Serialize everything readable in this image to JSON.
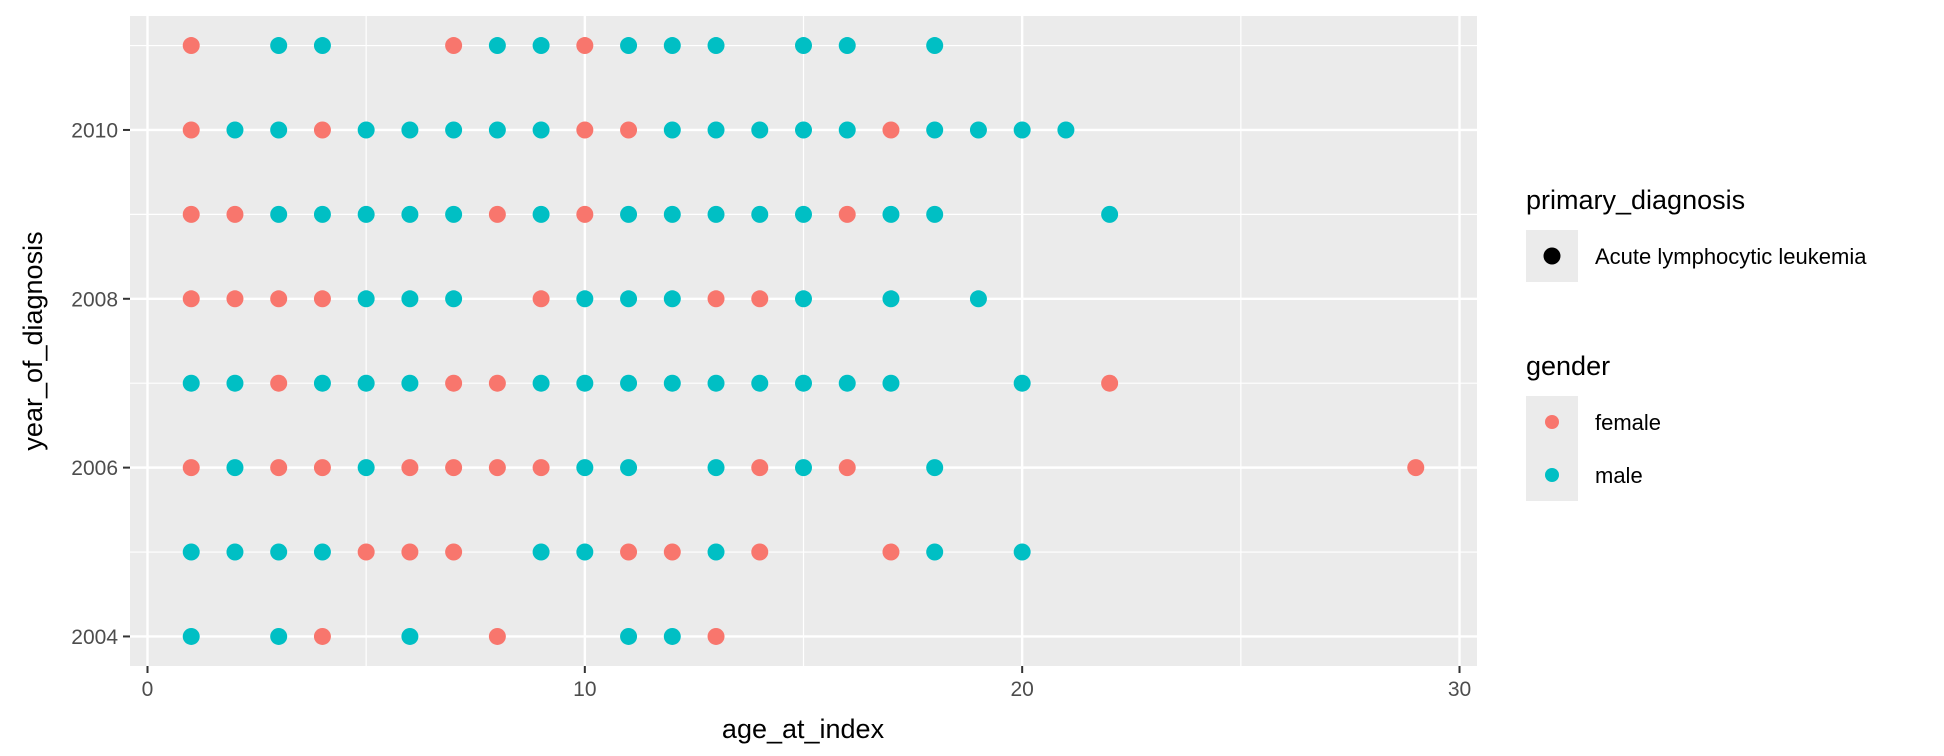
{
  "chart_data": {
    "type": "scatter",
    "title": "",
    "xlabel": "age_at_index",
    "ylabel": "year_of_diagnosis",
    "xlim": [
      -0.4,
      30.4
    ],
    "ylim": [
      2003.65,
      2011.35
    ],
    "x_ticks": [
      0,
      10,
      20,
      30
    ],
    "y_ticks": [
      2004,
      2006,
      2008,
      2010
    ],
    "x_tick_labels": [
      "0",
      "10",
      "20",
      "30"
    ],
    "y_tick_labels": [
      "2004",
      "2006",
      "2008",
      "2010"
    ],
    "grid": true,
    "legend_position": "right",
    "legends": [
      {
        "title": "primary_diagnosis",
        "entries": [
          {
            "label": "Acute lymphocytic leukemia",
            "color": "#000000"
          }
        ]
      },
      {
        "title": "gender",
        "entries": [
          {
            "label": "female",
            "color": "#F8766D"
          },
          {
            "label": "male",
            "color": "#00BFC4"
          }
        ]
      }
    ],
    "series": [
      {
        "name": "female",
        "color": "#F8766D",
        "points": [
          [
            1,
            2011
          ],
          [
            7,
            2011
          ],
          [
            10,
            2011
          ],
          [
            1,
            2010
          ],
          [
            4,
            2010
          ],
          [
            10,
            2010
          ],
          [
            11,
            2010
          ],
          [
            17,
            2010
          ],
          [
            1,
            2009
          ],
          [
            2,
            2009
          ],
          [
            8,
            2009
          ],
          [
            10,
            2009
          ],
          [
            16,
            2009
          ],
          [
            1,
            2008
          ],
          [
            2,
            2008
          ],
          [
            3,
            2008
          ],
          [
            4,
            2008
          ],
          [
            9,
            2008
          ],
          [
            13,
            2008
          ],
          [
            14,
            2008
          ],
          [
            3,
            2007
          ],
          [
            7,
            2007
          ],
          [
            8,
            2007
          ],
          [
            22,
            2007
          ],
          [
            1,
            2006
          ],
          [
            3,
            2006
          ],
          [
            4,
            2006
          ],
          [
            6,
            2006
          ],
          [
            7,
            2006
          ],
          [
            8,
            2006
          ],
          [
            9,
            2006
          ],
          [
            14,
            2006
          ],
          [
            16,
            2006
          ],
          [
            29,
            2006
          ],
          [
            5,
            2005
          ],
          [
            6,
            2005
          ],
          [
            7,
            2005
          ],
          [
            11,
            2005
          ],
          [
            12,
            2005
          ],
          [
            14,
            2005
          ],
          [
            17,
            2005
          ],
          [
            4,
            2004
          ],
          [
            8,
            2004
          ],
          [
            13,
            2004
          ]
        ]
      },
      {
        "name": "male",
        "color": "#00BFC4",
        "points": [
          [
            3,
            2011
          ],
          [
            4,
            2011
          ],
          [
            8,
            2011
          ],
          [
            9,
            2011
          ],
          [
            11,
            2011
          ],
          [
            12,
            2011
          ],
          [
            13,
            2011
          ],
          [
            15,
            2011
          ],
          [
            16,
            2011
          ],
          [
            18,
            2011
          ],
          [
            2,
            2010
          ],
          [
            3,
            2010
          ],
          [
            5,
            2010
          ],
          [
            6,
            2010
          ],
          [
            7,
            2010
          ],
          [
            8,
            2010
          ],
          [
            9,
            2010
          ],
          [
            12,
            2010
          ],
          [
            13,
            2010
          ],
          [
            14,
            2010
          ],
          [
            15,
            2010
          ],
          [
            16,
            2010
          ],
          [
            18,
            2010
          ],
          [
            19,
            2010
          ],
          [
            20,
            2010
          ],
          [
            21,
            2010
          ],
          [
            3,
            2009
          ],
          [
            4,
            2009
          ],
          [
            5,
            2009
          ],
          [
            6,
            2009
          ],
          [
            7,
            2009
          ],
          [
            9,
            2009
          ],
          [
            11,
            2009
          ],
          [
            12,
            2009
          ],
          [
            13,
            2009
          ],
          [
            14,
            2009
          ],
          [
            15,
            2009
          ],
          [
            17,
            2009
          ],
          [
            18,
            2009
          ],
          [
            22,
            2009
          ],
          [
            5,
            2008
          ],
          [
            6,
            2008
          ],
          [
            7,
            2008
          ],
          [
            10,
            2008
          ],
          [
            11,
            2008
          ],
          [
            12,
            2008
          ],
          [
            15,
            2008
          ],
          [
            17,
            2008
          ],
          [
            19,
            2008
          ],
          [
            1,
            2007
          ],
          [
            2,
            2007
          ],
          [
            4,
            2007
          ],
          [
            5,
            2007
          ],
          [
            6,
            2007
          ],
          [
            9,
            2007
          ],
          [
            10,
            2007
          ],
          [
            11,
            2007
          ],
          [
            12,
            2007
          ],
          [
            13,
            2007
          ],
          [
            14,
            2007
          ],
          [
            15,
            2007
          ],
          [
            16,
            2007
          ],
          [
            17,
            2007
          ],
          [
            20,
            2007
          ],
          [
            2,
            2006
          ],
          [
            5,
            2006
          ],
          [
            10,
            2006
          ],
          [
            11,
            2006
          ],
          [
            13,
            2006
          ],
          [
            15,
            2006
          ],
          [
            18,
            2006
          ],
          [
            1,
            2005
          ],
          [
            2,
            2005
          ],
          [
            3,
            2005
          ],
          [
            4,
            2005
          ],
          [
            9,
            2005
          ],
          [
            10,
            2005
          ],
          [
            13,
            2005
          ],
          [
            18,
            2005
          ],
          [
            20,
            2005
          ],
          [
            1,
            2004
          ],
          [
            3,
            2004
          ],
          [
            6,
            2004
          ],
          [
            11,
            2004
          ],
          [
            12,
            2004
          ]
        ]
      }
    ]
  }
}
